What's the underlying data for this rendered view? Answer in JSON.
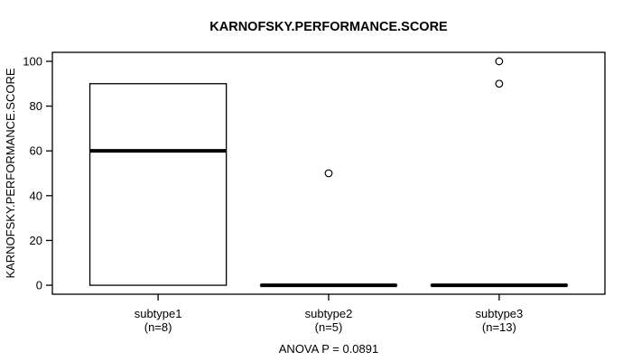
{
  "chart_data": {
    "type": "boxplot",
    "title": "KARNOFSKY.PERFORMANCE.SCORE",
    "ylabel": "KARNOFSKY.PERFORMANCE.SCORE",
    "xlabel": "",
    "annotation": "ANOVA P = 0.0891",
    "ylim": [
      -4,
      104
    ],
    "yticks": [
      0,
      20,
      40,
      60,
      80,
      100
    ],
    "grid": false,
    "groups": [
      {
        "label": "subtype1",
        "sublabel": "(n=8)",
        "n": 8,
        "q1": 0,
        "median": 60,
        "q3": 90,
        "whisker_low": 0,
        "whisker_high": 90,
        "outliers": []
      },
      {
        "label": "subtype2",
        "sublabel": "(n=5)",
        "n": 5,
        "q1": 0,
        "median": 0,
        "q3": 0,
        "whisker_low": 0,
        "whisker_high": 0,
        "outliers": [
          50
        ]
      },
      {
        "label": "subtype3",
        "sublabel": "(n=13)",
        "n": 13,
        "q1": 0,
        "median": 0,
        "q3": 0,
        "whisker_low": 0,
        "whisker_high": 0,
        "outliers": [
          100,
          90
        ]
      }
    ],
    "colors": {
      "line": "#000000",
      "box_fill": "#ffffff",
      "background": "#ffffff"
    }
  }
}
